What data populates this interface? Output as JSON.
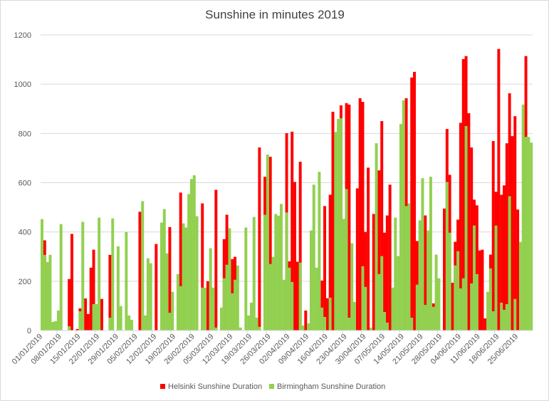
{
  "chart_data": {
    "type": "bar",
    "title": "Sunshine in minutes 2019",
    "xlabel": "",
    "ylabel": "",
    "ylim": [
      0,
      1200
    ],
    "yticks": [
      "0",
      "200",
      "400",
      "600",
      "800",
      "1000",
      "1200"
    ],
    "grid": true,
    "legend_position": "bottom",
    "x_start": "01/01/2019",
    "x_tick_interval_days": 7,
    "x_tick_labels": [
      "01/01/2019",
      "08/01/2019",
      "15/01/2019",
      "22/01/2019",
      "29/01/2019",
      "05/02/2019",
      "12/02/2019",
      "19/02/2019",
      "26/02/2019",
      "05/03/2019",
      "12/03/2019",
      "19/03/2019",
      "26/03/2019",
      "02/04/2019",
      "09/04/2019",
      "16/04/2019",
      "23/04/2019",
      "30/04/2019",
      "07/05/2019",
      "14/05/2019",
      "21/05/2019",
      "28/05/2019",
      "04/06/2019",
      "11/06/2019",
      "18/06/2019",
      "25/06/2019"
    ],
    "series": [
      {
        "name": "Helsinki Sunshine Duration",
        "color": "#ff0000",
        "values": [
          0,
          366,
          0,
          0,
          0,
          0,
          0,
          0,
          0,
          0,
          209,
          392,
          0,
          6,
          90,
          0,
          130,
          67,
          255,
          328,
          0,
          0,
          128,
          0,
          0,
          307,
          0,
          0,
          0,
          0,
          0,
          0,
          0,
          0,
          0,
          0,
          482,
          0,
          0,
          0,
          0,
          0,
          351,
          0,
          0,
          0,
          0,
          420,
          0,
          0,
          0,
          560,
          0,
          0,
          0,
          0,
          0,
          0,
          0,
          516,
          0,
          200,
          0,
          0,
          571,
          0,
          0,
          371,
          470,
          0,
          290,
          299,
          0,
          0,
          0,
          0,
          0,
          0,
          0,
          0,
          743,
          0,
          624,
          0,
          705,
          0,
          0,
          0,
          0,
          0,
          801,
          281,
          807,
          603,
          279,
          685,
          0,
          81,
          0,
          0,
          0,
          0,
          0,
          203,
          505,
          131,
          551,
          888,
          0,
          0,
          914,
          0,
          923,
          917,
          0,
          0,
          577,
          943,
          928,
          400,
          661,
          0,
          473,
          0,
          650,
          850,
          397,
          467,
          592,
          0,
          0,
          0,
          0,
          0,
          943,
          0,
          1027,
          1050,
          363,
          0,
          0,
          467,
          0,
          0,
          110,
          0,
          0,
          0,
          495,
          818,
          632,
          194,
          360,
          450,
          843,
          1102,
          1114,
          882,
          743,
          531,
          508,
          325,
          328,
          49,
          0,
          308,
          769,
          563,
          1143,
          551,
          589,
          760,
          963,
          789,
          870,
          491,
          0,
          0,
          1114,
          0,
          0
        ]
      },
      {
        "name": "Birmingham Sunshine Duration",
        "color": "#92d050",
        "values": [
          452,
          307,
          278,
          307,
          35,
          38,
          81,
          432,
          0,
          0,
          17,
          0,
          0,
          0,
          78,
          441,
          0,
          0,
          0,
          107,
          107,
          458,
          0,
          0,
          0,
          52,
          455,
          0,
          342,
          99,
          0,
          400,
          61,
          43,
          0,
          0,
          0,
          525,
          61,
          293,
          273,
          0,
          0,
          0,
          438,
          493,
          313,
          72,
          157,
          0,
          229,
          180,
          435,
          418,
          554,
          615,
          630,
          464,
          0,
          174,
          174,
          0,
          334,
          174,
          12,
          0,
          93,
          212,
          267,
          415,
          151,
          206,
          264,
          12,
          0,
          418,
          61,
          113,
          461,
          52,
          15,
          0,
          470,
          714,
          270,
          299,
          473,
          466,
          514,
          206,
          479,
          255,
          197,
          0,
          0,
          276,
          20,
          0,
          29,
          406,
          592,
          255,
          644,
          93,
          55,
          0,
          133,
          0,
          806,
          859,
          862,
          453,
          574,
          52,
          354,
          116,
          0,
          0,
          261,
          177,
          0,
          12,
          0,
          760,
          229,
          302,
          75,
          32,
          0,
          174,
          458,
          302,
          838,
          934,
          505,
          516,
          52,
          0,
          186,
          447,
          618,
          104,
          406,
          624,
          96,
          308,
          212,
          0,
          0,
          603,
          397,
          0,
          264,
          322,
          171,
          212,
          830,
          0,
          191,
          426,
          229,
          0,
          0,
          0,
          157,
          252,
          78,
          426,
          0,
          113,
          84,
          107,
          545,
          0,
          128,
          0,
          360,
          917,
          786,
          786,
          763
        ]
      }
    ]
  }
}
